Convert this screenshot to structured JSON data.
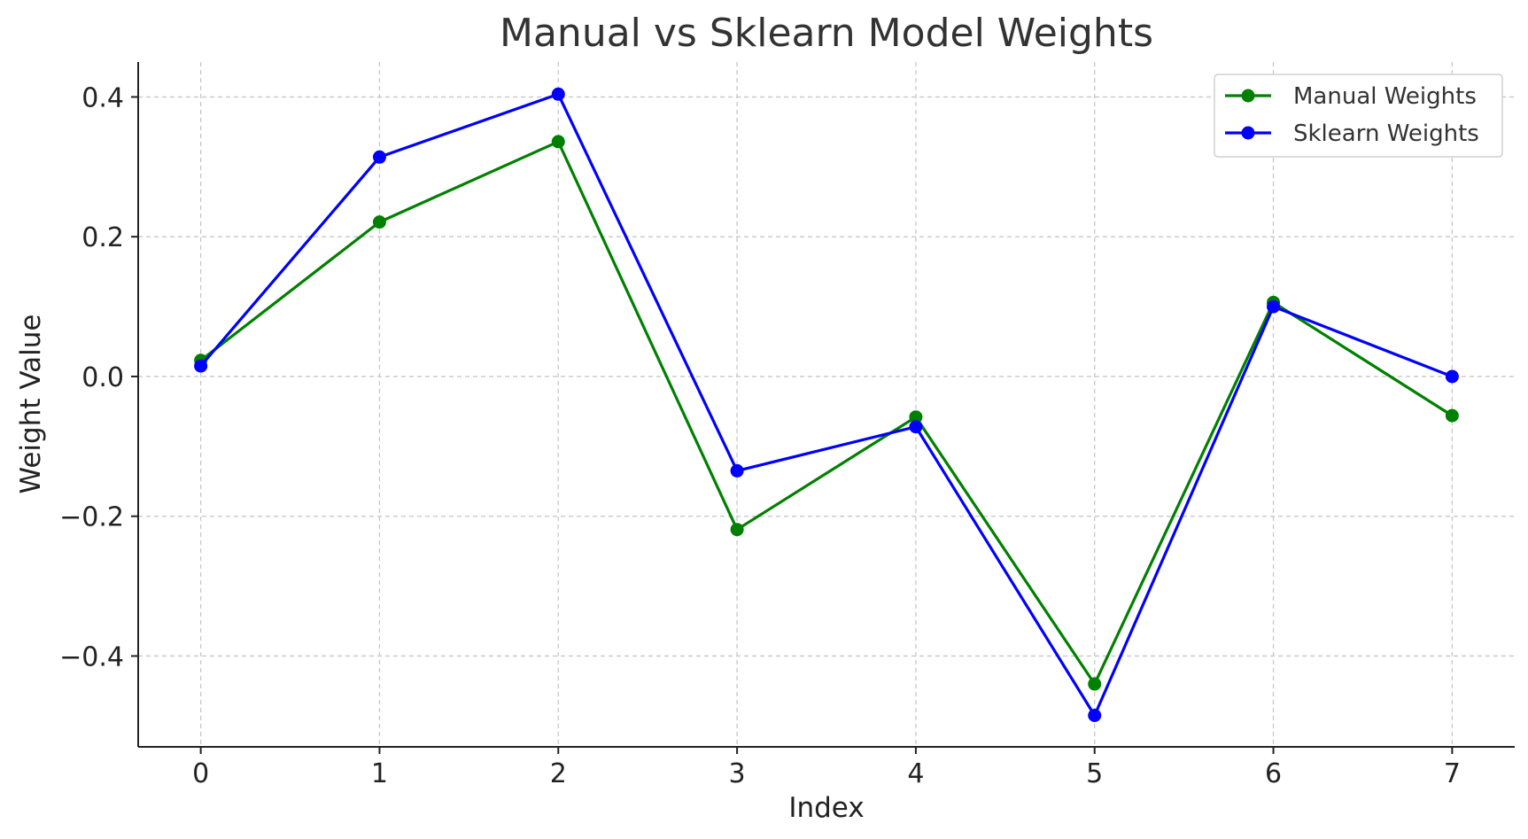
{
  "chart_data": {
    "type": "line",
    "title": "Manual vs Sklearn Model Weights",
    "xlabel": "Index",
    "ylabel": "Weight Value",
    "x": [
      0,
      1,
      2,
      3,
      4,
      5,
      6,
      7
    ],
    "xlim": [
      -0.35,
      7.35
    ],
    "ylim": [
      -0.53,
      0.45
    ],
    "xticks": [
      0,
      1,
      2,
      3,
      4,
      5,
      6,
      7
    ],
    "yticks": [
      0.4,
      0.2,
      0.0,
      -0.2,
      -0.4
    ],
    "ytick_labels": [
      "0.4",
      "0.2",
      "0.0",
      "−0.2",
      "−0.4"
    ],
    "grid": true,
    "legend_position": "top-right",
    "series": [
      {
        "name": "Manual Weights",
        "color": "#008000",
        "marker": "circle",
        "values": [
          0.023,
          0.221,
          0.336,
          -0.219,
          -0.058,
          -0.44,
          0.106,
          -0.056
        ]
      },
      {
        "name": "Sklearn Weights",
        "color": "#0000ff",
        "marker": "circle",
        "values": [
          0.015,
          0.314,
          0.404,
          -0.135,
          -0.072,
          -0.485,
          0.1,
          0.0
        ]
      }
    ]
  }
}
